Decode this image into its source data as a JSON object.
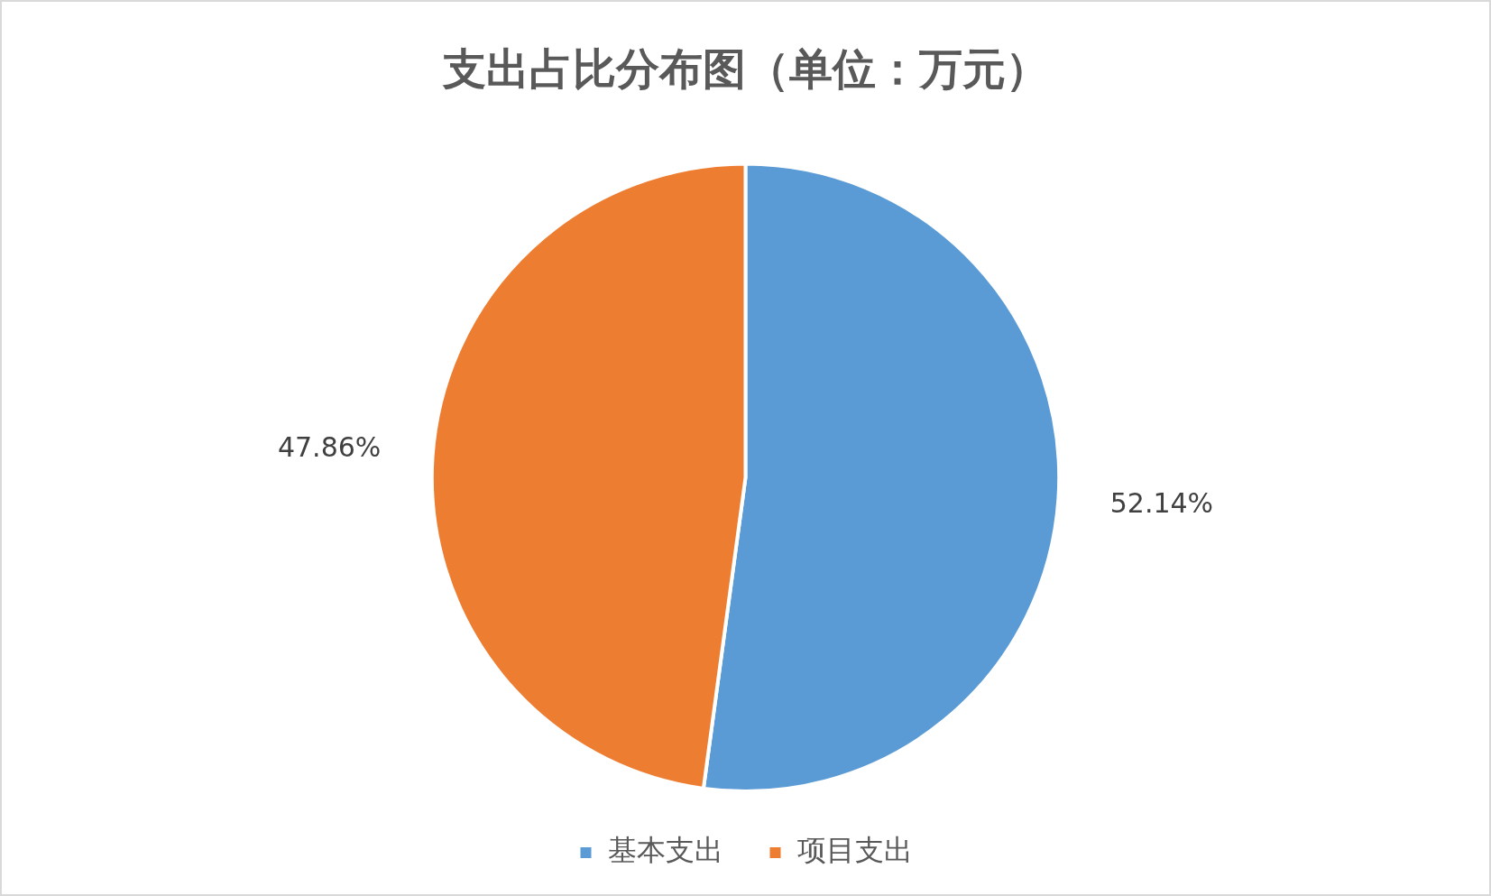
{
  "chart_data": {
    "type": "pie",
    "title": "支出占比分布图（单位：万元）",
    "categories": [
      "基本支出",
      "项目支出"
    ],
    "values": [
      52.14,
      47.86
    ],
    "colors": [
      "#5b9bd5",
      "#ed7d31"
    ],
    "value_labels": [
      "52.14%",
      "47.86%"
    ],
    "legend": "bottom"
  }
}
